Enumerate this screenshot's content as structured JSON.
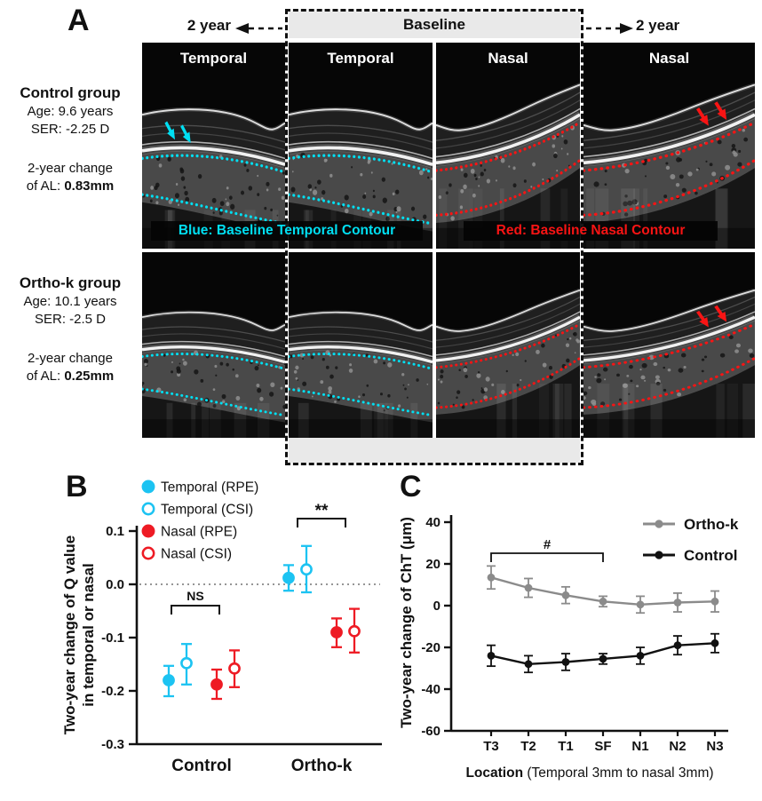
{
  "figure": {
    "panel_a": {
      "label": "A",
      "timeline_left": "2 year",
      "timeline_center": "Baseline",
      "timeline_right": "2 year",
      "column_labels": [
        "Temporal",
        "Temporal",
        "Nasal",
        "Nasal"
      ],
      "groups": [
        {
          "name": "Control group",
          "age": "Age: 9.6 years",
          "ser": "SER: -2.25 D",
          "change_line1": "2-year change",
          "change_line2": "of AL:",
          "change_value": "0.83mm"
        },
        {
          "name": "Ortho-k group",
          "age": "Age: 10.1 years",
          "ser": "SER: -2.5 D",
          "change_line1": "2-year change",
          "change_line2": "of AL:",
          "change_value": "0.25mm"
        }
      ],
      "contour_legend_blue": "Blue: Baseline Temporal Contour",
      "contour_legend_red": "Red: Baseline Nasal Contour",
      "colors": {
        "temporal_contour": "#00DFF2",
        "nasal_contour": "#F81414"
      },
      "oct_panels": [
        {
          "row": 0,
          "col": 0,
          "shape": "temporal",
          "contour": "blue",
          "arrows": "blue"
        },
        {
          "row": 0,
          "col": 1,
          "shape": "temporal",
          "contour": "blue"
        },
        {
          "row": 0,
          "col": 2,
          "shape": "nasal",
          "contour": "red"
        },
        {
          "row": 0,
          "col": 3,
          "shape": "nasal",
          "contour": "red",
          "arrows": "red"
        },
        {
          "row": 1,
          "col": 0,
          "shape": "temporal",
          "contour": "blue"
        },
        {
          "row": 1,
          "col": 1,
          "shape": "temporal",
          "contour": "blue"
        },
        {
          "row": 1,
          "col": 2,
          "shape": "nasal",
          "contour": "red"
        },
        {
          "row": 1,
          "col": 3,
          "shape": "nasal",
          "contour": "red",
          "arrows": "red"
        }
      ]
    },
    "panel_b": {
      "label": "B"
    },
    "panel_c": {
      "label": "C"
    }
  },
  "chart_data": [
    {
      "id": "panel_b",
      "type": "scatter",
      "ylabel_line1": "Two-year change of Q value",
      "ylabel_line2": "in temporal or nasal",
      "ylim": [
        -0.3,
        0.1
      ],
      "yticks": [
        "0.1",
        "0.0",
        "-0.1",
        "-0.2",
        "-0.3"
      ],
      "zero_line_dotted": true,
      "categories": [
        "Control",
        "Ortho-k"
      ],
      "legend": [
        "Temporal (RPE)",
        "Temporal (CSI)",
        "Nasal (RPE)",
        "Nasal (CSI)"
      ],
      "series": [
        {
          "name": "Temporal (RPE)",
          "color": "#1CC3F2",
          "fill": true,
          "means": [
            -0.18,
            0.012
          ],
          "ci_low": [
            -0.21,
            -0.012
          ],
          "ci_high": [
            -0.153,
            0.036
          ]
        },
        {
          "name": "Temporal (CSI)",
          "color": "#1CC3F2",
          "fill": false,
          "means": [
            -0.148,
            0.028
          ],
          "ci_low": [
            -0.188,
            -0.015
          ],
          "ci_high": [
            -0.112,
            0.072
          ]
        },
        {
          "name": "Nasal (RPE)",
          "color": "#EE1B24",
          "fill": true,
          "means": [
            -0.188,
            -0.09
          ],
          "ci_low": [
            -0.215,
            -0.118
          ],
          "ci_high": [
            -0.16,
            -0.064
          ]
        },
        {
          "name": "Nasal (CSI)",
          "color": "#EE1B24",
          "fill": false,
          "means": [
            -0.158,
            -0.088
          ],
          "ci_low": [
            -0.193,
            -0.128
          ],
          "ci_high": [
            -0.124,
            -0.046
          ]
        }
      ],
      "annotations": [
        {
          "text": "NS",
          "category": "Control"
        },
        {
          "text": "**",
          "category": "Ortho-k"
        }
      ]
    },
    {
      "id": "panel_c",
      "type": "line",
      "ylabel": "Two-year change of ChT (μm)",
      "xlabel_bold": "Location",
      "xlabel_rest": " (Temporal 3mm to nasal 3mm)",
      "ylim": [
        -60,
        40
      ],
      "yticks": [
        "40",
        "20",
        "0",
        "-20",
        "-40",
        "-60"
      ],
      "categories": [
        "T3",
        "T2",
        "T1",
        "SF",
        "N1",
        "N2",
        "N3"
      ],
      "series": [
        {
          "name": "Ortho-k",
          "color": "#8B8B8B",
          "values": [
            13.5,
            8.5,
            5,
            2,
            0.5,
            1.5,
            2
          ],
          "err": [
            5.5,
            4.5,
            4,
            2.5,
            4,
            4.5,
            5
          ]
        },
        {
          "name": "Control",
          "color": "#111111",
          "values": [
            -24,
            -28,
            -27,
            -25.5,
            -24,
            -19,
            -18
          ],
          "err": [
            5,
            4,
            4,
            2.5,
            4,
            4.5,
            4.5
          ]
        }
      ],
      "annotation": {
        "text": "#",
        "from": "T3",
        "to": "SF",
        "y": 25
      }
    }
  ]
}
